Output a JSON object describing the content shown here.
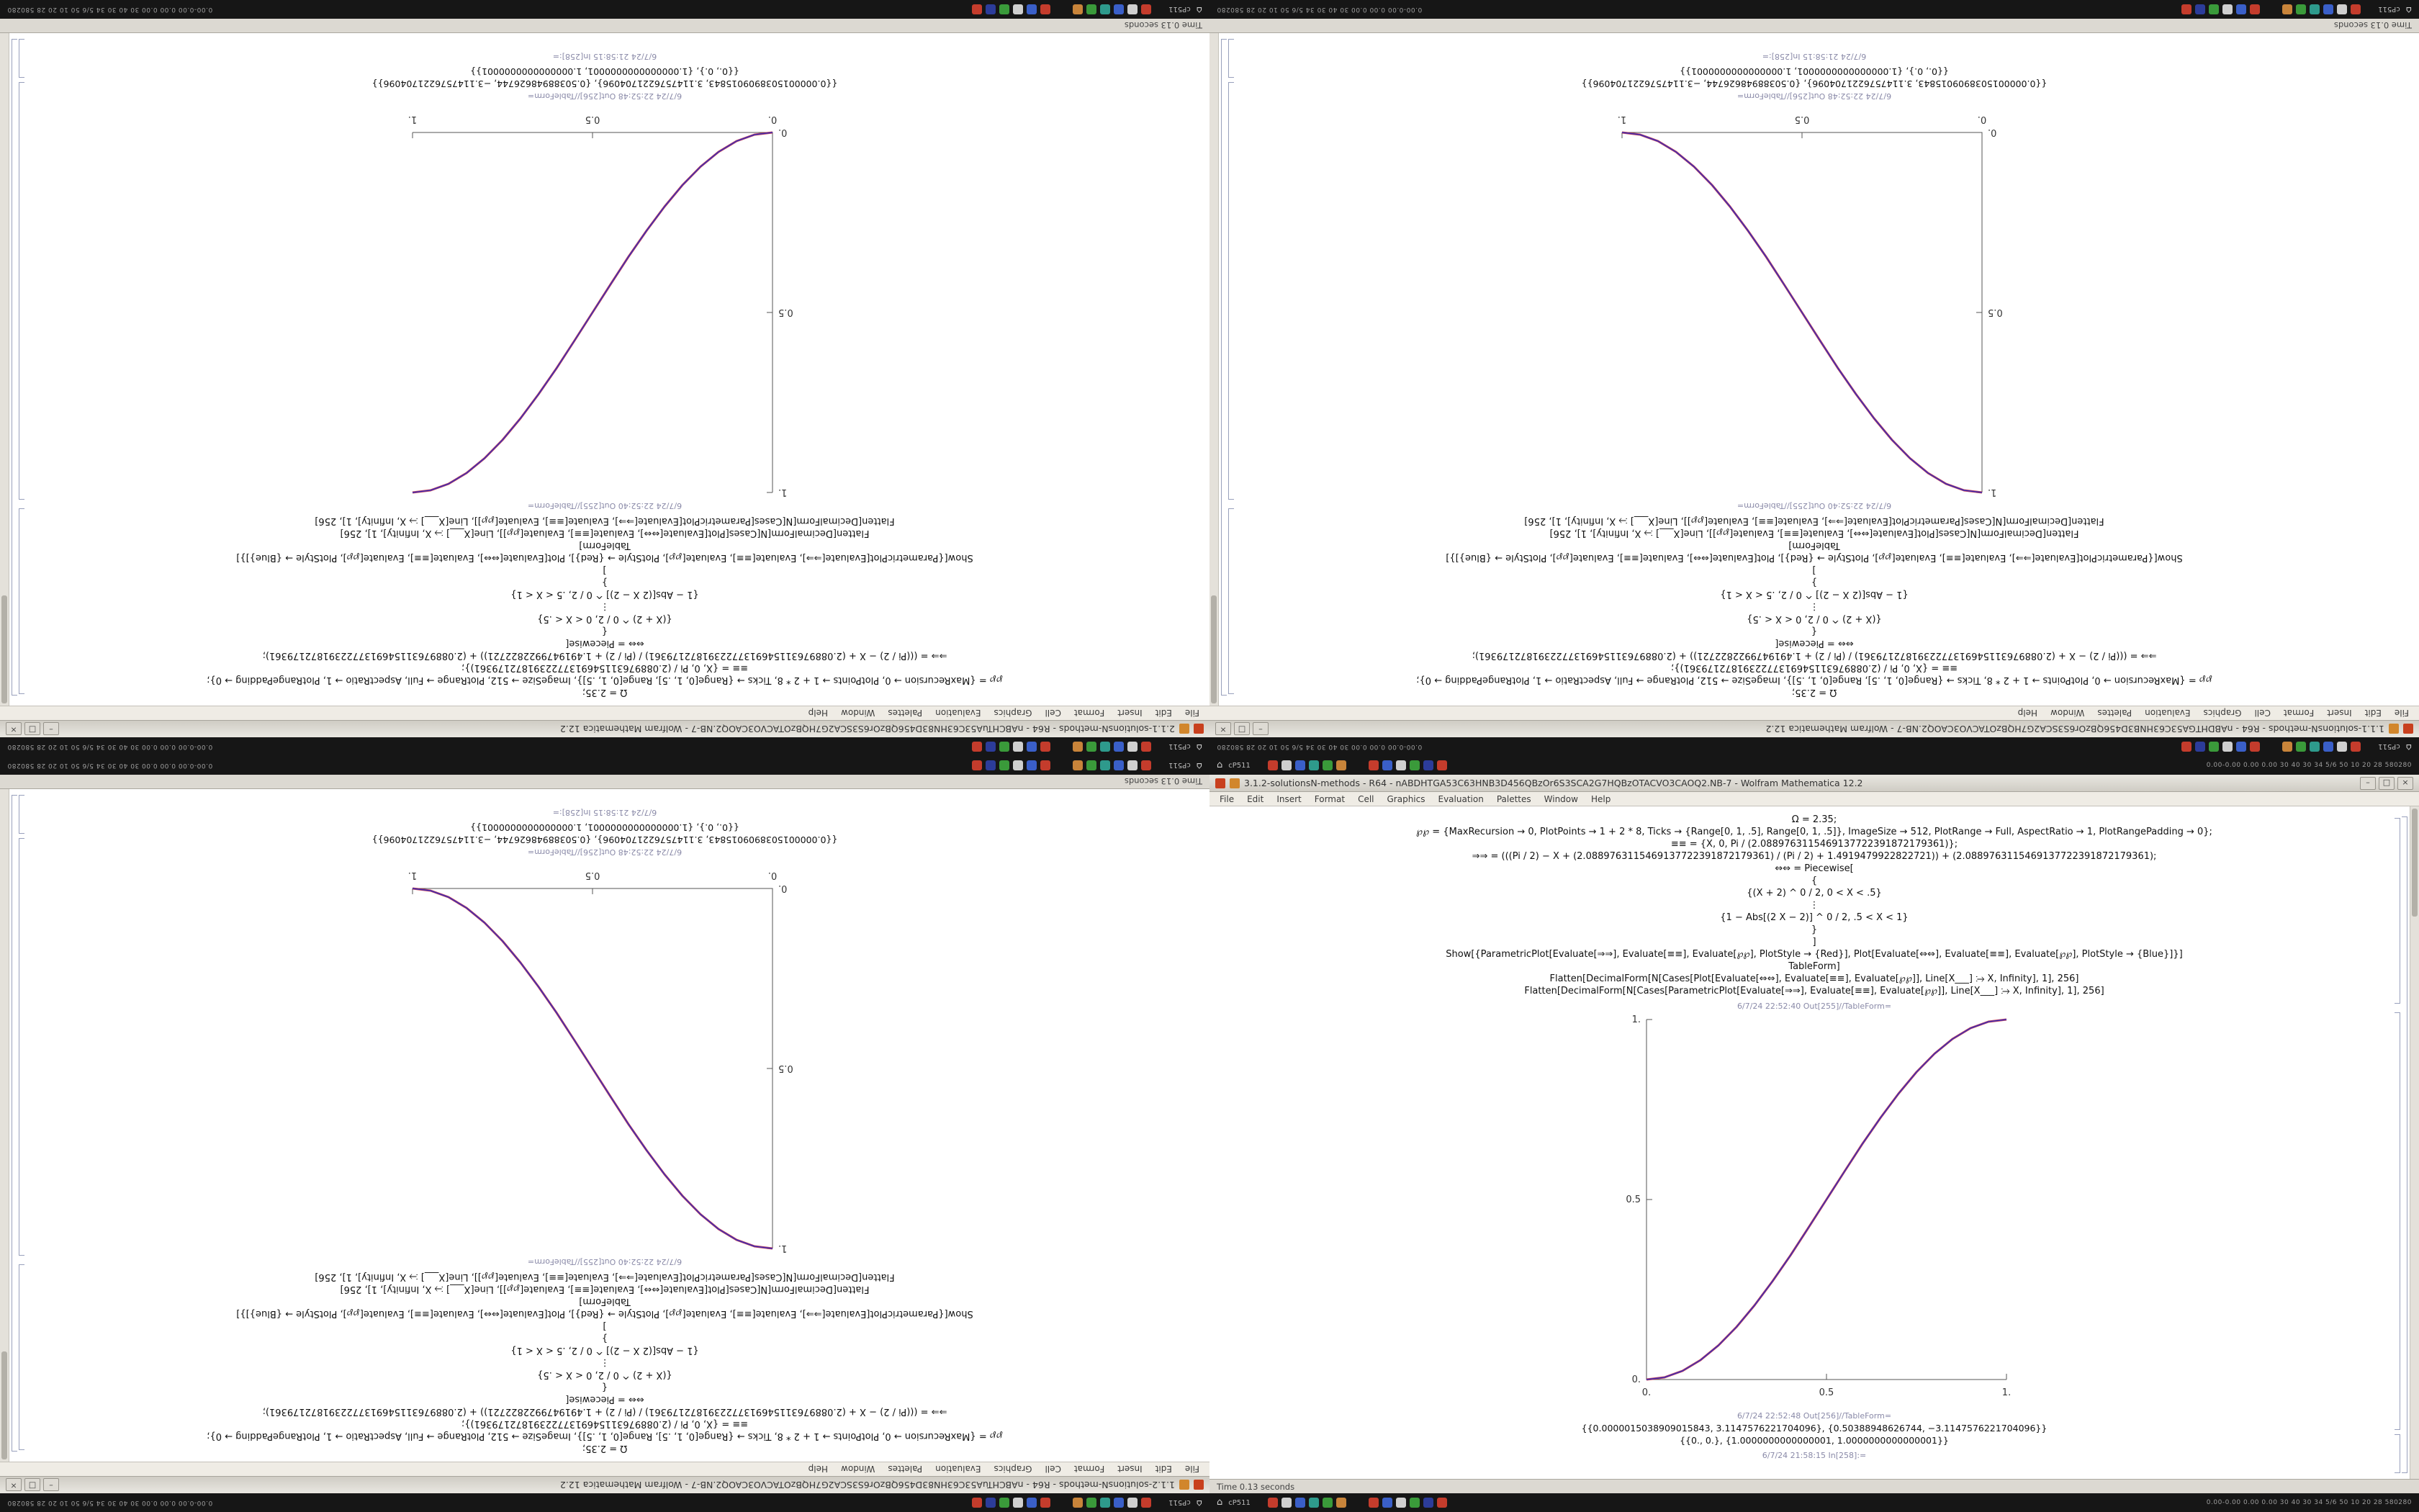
{
  "desktop": {
    "panel": {
      "home_glyph": "⌂",
      "left_text": "cP511",
      "right_text": "0.00-0.00 0.00 0.00 30 40 30 34 5/6 50 10 20 28 580280",
      "icons": [
        {
          "name": "taskbar-app-icon",
          "color": "#c43c2c"
        },
        {
          "name": "taskbar-app-icon",
          "color": "#cfcfcf"
        },
        {
          "name": "taskbar-app-icon",
          "color": "#3a5fc8"
        },
        {
          "name": "taskbar-app-icon",
          "color": "#2e9a8c"
        },
        {
          "name": "taskbar-app-icon",
          "color": "#3a9a3a"
        },
        {
          "name": "taskbar-app-icon",
          "color": "#c8843a"
        },
        {
          "name": "taskbar-app-icon",
          "color": "#c43c2c"
        },
        {
          "name": "taskbar-app-icon",
          "color": "#3a5fc8"
        },
        {
          "name": "taskbar-app-icon",
          "color": "#cfcfcf"
        },
        {
          "name": "taskbar-app-icon",
          "color": "#3a9a3a"
        },
        {
          "name": "taskbar-app-icon",
          "color": "#2c3c9a"
        },
        {
          "name": "taskbar-app-icon",
          "color": "#c43c2c"
        }
      ]
    }
  },
  "window_controls": {
    "minimize": "–",
    "maximize": "□",
    "close": "×"
  },
  "menu": {
    "items": [
      "File",
      "Edit",
      "Insert",
      "Format",
      "Cell",
      "Graphics",
      "Evaluation",
      "Palettes",
      "Window",
      "Help"
    ]
  },
  "status": {
    "time_text": "Time 0.13 seconds"
  },
  "windows": [
    {
      "position": "top-left",
      "rotated": true,
      "title": "2.1.1-solutionsN-methods - R64 - nABCHTuA53C63HN83D456QBzOr6S3SCA2G7HQBzOTACVO3CAOQ2.NB-7 - Wolfram Mathematica 12.2"
    },
    {
      "position": "top-right",
      "rotated": true,
      "title": "1.1.1-solutionsN-methods - R64 - nABDHTGA53C63HNB3D456QBzOr6S3SCA2G7HQBzOTACVO3CAOQ2.NB-7 - Wolfram Mathematica 12.2"
    },
    {
      "position": "bottom-left",
      "rotated": true,
      "title": "1.1.2-solutionsN-methods - R64 - nABCHTuA53C63HN83D456QBzOr6S3SCA2G7HQBzOTACVO3CAOQ2.NB-7 - Wolfram Mathematica 12.2"
    },
    {
      "position": "bottom-right",
      "rotated": false,
      "title": "3.1.2-solutionsN-methods - R64 - nABDHTGA53C63HNB3D456QBzOr6S3SCA2G7HQBzOTACVO3CAOQ2.NB-7 - Wolfram Mathematica 12.2"
    }
  ],
  "notebook": {
    "cells": [
      "Ω = 2.35;",
      "℘℘ = {MaxRecursion → 0, PlotPoints → 1 + 2 * 8, Ticks → {Range[0, 1, .5], Range[0, 1, .5]}, ImageSize → 512, PlotRange → Full, AspectRatio → 1, PlotRangePadding → 0};",
      "≡≡ = {X, 0, Pi / (2.0889763115469137722391872179361)};",
      "⇒⇒ = (((Pi / 2) − X + (2.0889763115469137722391872179361) / (Pi / 2) + 1.4919479922822721)) + (2.0889763115469137722391872179361);",
      "⇔⇔ = Piecewise[",
      "{",
      "{(X + 2) ^ 0 / 2, 0 < X < .5}",
      "⋮",
      "{1 − Abs[(2 X − 2)] ^ 0 / 2, .5 < X < 1}",
      "}",
      "]",
      "Show[{ParametricPlot[Evaluate[⇒⇒], Evaluate[≡≡], Evaluate[℘℘], PlotStyle → {Red}], Plot[Evaluate[⇔⇔], Evaluate[≡≡], Evaluate[℘℘], PlotStyle → {Blue}]}]",
      "TableForm]",
      "Flatten[DecimalForm[N[Cases[Plot[Evaluate[⇔⇔], Evaluate[≡≡], Evaluate[℘℘]], Line[X___] ⧴ X, Infinity], 1], 256]",
      "Flatten[DecimalForm[N[Cases[ParametricPlot[Evaluate[⇒⇒], Evaluate[≡≡], Evaluate[℘℘]], Line[X___] ⧴ X, Infinity], 1], 256]"
    ],
    "plot_header": "6/7/24 22:52:40 Out[255]//TableForm=",
    "numbers_header": "6/7/24 22:52:48 Out[256]//TableForm=",
    "numbers": [
      "{{0.0000015038909015843, 3.1147576221704096}, {0.50388948626744, −3.1147576221704096}}",
      "{{0., 0.}, {1.0000000000000001, 1.0000000000000001}}"
    ],
    "footer_label": "6/7/24 21:58:15 In[258]:="
  },
  "chart_data": {
    "type": "line",
    "note": "Four notebook plots, one per window; sigmoid curves from red ParametricPlot overlapped by blue Plot",
    "xlim": [
      0,
      1
    ],
    "ylim": [
      0,
      1
    ],
    "x_ticks": [
      "0.",
      "0.5",
      "1."
    ],
    "y_ticks": [
      "0.",
      "0.5",
      "1."
    ],
    "grid": false,
    "legend": "none",
    "curves": {
      "ascending": [
        [
          0,
          0
        ],
        [
          0.05,
          0.006
        ],
        [
          0.1,
          0.024
        ],
        [
          0.15,
          0.054
        ],
        [
          0.2,
          0.095
        ],
        [
          0.25,
          0.146
        ],
        [
          0.3,
          0.206
        ],
        [
          0.35,
          0.273
        ],
        [
          0.4,
          0.345
        ],
        [
          0.45,
          0.422
        ],
        [
          0.5,
          0.5
        ],
        [
          0.55,
          0.578
        ],
        [
          0.6,
          0.655
        ],
        [
          0.65,
          0.727
        ],
        [
          0.7,
          0.794
        ],
        [
          0.75,
          0.854
        ],
        [
          0.8,
          0.905
        ],
        [
          0.85,
          0.946
        ],
        [
          0.9,
          0.976
        ],
        [
          0.95,
          0.994
        ],
        [
          1,
          1
        ]
      ],
      "descending": [
        [
          0,
          1
        ],
        [
          0.05,
          0.994
        ],
        [
          0.1,
          0.976
        ],
        [
          0.15,
          0.946
        ],
        [
          0.2,
          0.905
        ],
        [
          0.25,
          0.854
        ],
        [
          0.3,
          0.794
        ],
        [
          0.35,
          0.727
        ],
        [
          0.4,
          0.655
        ],
        [
          0.45,
          0.578
        ],
        [
          0.5,
          0.5
        ],
        [
          0.55,
          0.422
        ],
        [
          0.6,
          0.345
        ],
        [
          0.65,
          0.273
        ],
        [
          0.7,
          0.206
        ],
        [
          0.75,
          0.146
        ],
        [
          0.8,
          0.095
        ],
        [
          0.85,
          0.054
        ],
        [
          0.9,
          0.024
        ],
        [
          0.95,
          0.006
        ],
        [
          1,
          0
        ]
      ]
    },
    "plots": [
      {
        "window": "top-left",
        "direction": "ascending",
        "series": [
          {
            "name": "ParametricPlot",
            "color": "#c2233a"
          },
          {
            "name": "Plot",
            "color": "#2a2ac0"
          }
        ]
      },
      {
        "window": "top-right",
        "direction": "descending",
        "series": [
          {
            "name": "ParametricPlot",
            "color": "#c2233a"
          },
          {
            "name": "Plot",
            "color": "#2a2ac0"
          }
        ]
      },
      {
        "window": "bottom-left",
        "direction": "descending",
        "series": [
          {
            "name": "ParametricPlot",
            "color": "#c2233a"
          },
          {
            "name": "Plot",
            "color": "#2a2ac0"
          }
        ]
      },
      {
        "window": "bottom-right",
        "direction": "ascending",
        "series": [
          {
            "name": "ParametricPlot",
            "color": "#c2233a"
          },
          {
            "name": "Plot",
            "color": "#2a2ac0"
          }
        ]
      }
    ]
  }
}
